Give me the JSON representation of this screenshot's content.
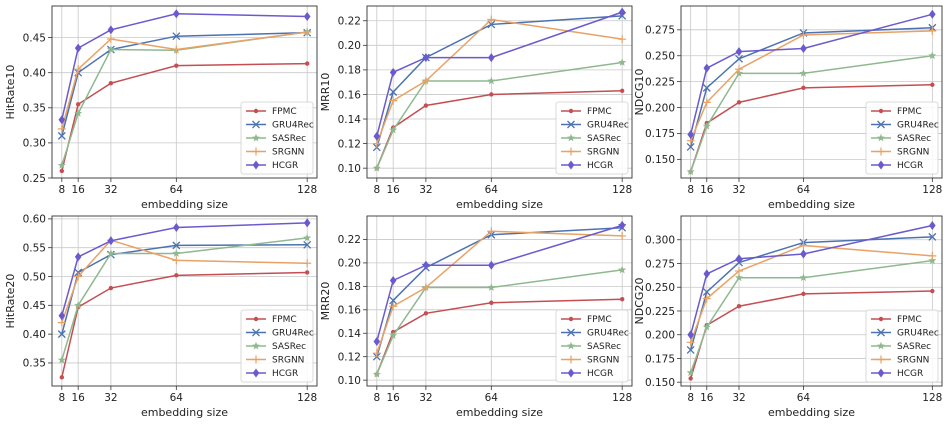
{
  "chart_data": [
    {
      "type": "line",
      "x": [
        8,
        16,
        32,
        64,
        128
      ],
      "xticks": [
        "8",
        "16",
        "32",
        "64",
        "128"
      ],
      "xlabel": "embedding size",
      "ylabel": "HitRate10",
      "ylim": [
        0.25,
        0.495
      ],
      "yticks": [
        "0.25",
        "0.30",
        "0.35",
        "0.40",
        "0.45"
      ],
      "grid": true,
      "legend_position": "lower-right",
      "series": [
        {
          "name": "FPMC",
          "values": [
            0.26,
            0.355,
            0.385,
            0.41,
            0.413
          ]
        },
        {
          "name": "GRU4Rec",
          "values": [
            0.31,
            0.4,
            0.433,
            0.452,
            0.457
          ]
        },
        {
          "name": "SASRec",
          "values": [
            0.268,
            0.342,
            0.433,
            0.432,
            0.458
          ]
        },
        {
          "name": "SRGNN",
          "values": [
            0.32,
            0.405,
            0.448,
            0.433,
            0.458
          ]
        },
        {
          "name": "HCGR",
          "values": [
            0.333,
            0.435,
            0.461,
            0.484,
            0.48
          ]
        }
      ]
    },
    {
      "type": "line",
      "x": [
        8,
        16,
        32,
        64,
        128
      ],
      "xticks": [
        "8",
        "16",
        "32",
        "64",
        "128"
      ],
      "xlabel": "embedding size",
      "ylabel": "MRR10",
      "ylim": [
        0.092,
        0.232
      ],
      "yticks": [
        "0.10",
        "0.12",
        "0.14",
        "0.16",
        "0.18",
        "0.20",
        "0.22"
      ],
      "grid": true,
      "legend_position": "lower-right",
      "series": [
        {
          "name": "FPMC",
          "values": [
            0.1,
            0.133,
            0.151,
            0.16,
            0.163
          ]
        },
        {
          "name": "GRU4Rec",
          "values": [
            0.117,
            0.162,
            0.19,
            0.217,
            0.224
          ]
        },
        {
          "name": "SASRec",
          "values": [
            0.1,
            0.131,
            0.171,
            0.171,
            0.186
          ]
        },
        {
          "name": "SRGNN",
          "values": [
            0.12,
            0.155,
            0.171,
            0.221,
            0.205
          ]
        },
        {
          "name": "HCGR",
          "values": [
            0.126,
            0.178,
            0.19,
            0.19,
            0.227
          ]
        }
      ]
    },
    {
      "type": "line",
      "x": [
        8,
        16,
        32,
        64,
        128
      ],
      "xticks": [
        "8",
        "16",
        "32",
        "64",
        "128"
      ],
      "xlabel": "embedding size",
      "ylabel": "NDCG10",
      "ylim": [
        0.132,
        0.298
      ],
      "yticks": [
        "0.150",
        "0.175",
        "0.200",
        "0.225",
        "0.250",
        "0.275"
      ],
      "grid": true,
      "legend_position": "lower-right",
      "series": [
        {
          "name": "FPMC",
          "values": [
            0.138,
            0.185,
            0.205,
            0.219,
            0.222
          ]
        },
        {
          "name": "GRU4Rec",
          "values": [
            0.162,
            0.219,
            0.247,
            0.272,
            0.277
          ]
        },
        {
          "name": "SASRec",
          "values": [
            0.138,
            0.182,
            0.233,
            0.233,
            0.25
          ]
        },
        {
          "name": "SRGNN",
          "values": [
            0.168,
            0.205,
            0.237,
            0.27,
            0.274
          ]
        },
        {
          "name": "HCGR",
          "values": [
            0.174,
            0.238,
            0.254,
            0.257,
            0.29
          ]
        }
      ]
    },
    {
      "type": "line",
      "x": [
        8,
        16,
        32,
        64,
        128
      ],
      "xticks": [
        "8",
        "16",
        "32",
        "64",
        "128"
      ],
      "xlabel": "embedding size",
      "ylabel": "HitRate20",
      "ylim": [
        0.31,
        0.605
      ],
      "yticks": [
        "0.35",
        "0.40",
        "0.45",
        "0.50",
        "0.55",
        "0.60"
      ],
      "grid": true,
      "legend_position": "lower-right",
      "series": [
        {
          "name": "FPMC",
          "values": [
            0.325,
            0.447,
            0.48,
            0.502,
            0.507
          ]
        },
        {
          "name": "GRU4Rec",
          "values": [
            0.4,
            0.507,
            0.538,
            0.554,
            0.555
          ]
        },
        {
          "name": "SASRec",
          "values": [
            0.355,
            0.45,
            0.54,
            0.54,
            0.567
          ]
        },
        {
          "name": "SRGNN",
          "values": [
            0.42,
            0.5,
            0.563,
            0.528,
            0.523
          ]
        },
        {
          "name": "HCGR",
          "values": [
            0.432,
            0.534,
            0.562,
            0.585,
            0.593
          ]
        }
      ]
    },
    {
      "type": "line",
      "x": [
        8,
        16,
        32,
        64,
        128
      ],
      "xticks": [
        "8",
        "16",
        "32",
        "64",
        "128"
      ],
      "xlabel": "embedding size",
      "ylabel": "MRR20",
      "ylim": [
        0.095,
        0.24
      ],
      "yticks": [
        "0.10",
        "0.12",
        "0.14",
        "0.16",
        "0.18",
        "0.20",
        "0.22"
      ],
      "grid": true,
      "legend_position": "lower-right",
      "series": [
        {
          "name": "FPMC",
          "values": [
            0.105,
            0.141,
            0.157,
            0.166,
            0.169
          ]
        },
        {
          "name": "GRU4Rec",
          "values": [
            0.12,
            0.168,
            0.196,
            0.224,
            0.23
          ]
        },
        {
          "name": "SASRec",
          "values": [
            0.105,
            0.138,
            0.179,
            0.179,
            0.194
          ]
        },
        {
          "name": "SRGNN",
          "values": [
            0.123,
            0.163,
            0.179,
            0.227,
            0.223
          ]
        },
        {
          "name": "HCGR",
          "values": [
            0.133,
            0.185,
            0.198,
            0.198,
            0.232
          ]
        }
      ]
    },
    {
      "type": "line",
      "x": [
        8,
        16,
        32,
        64,
        128
      ],
      "xticks": [
        "8",
        "16",
        "32",
        "64",
        "128"
      ],
      "xlabel": "embedding size",
      "ylabel": "NDCG20",
      "ylim": [
        0.146,
        0.325
      ],
      "yticks": [
        "0.150",
        "0.175",
        "0.200",
        "0.225",
        "0.250",
        "0.275",
        "0.300"
      ],
      "grid": true,
      "legend_position": "lower-right",
      "series": [
        {
          "name": "FPMC",
          "values": [
            0.154,
            0.21,
            0.23,
            0.243,
            0.246
          ]
        },
        {
          "name": "GRU4Rec",
          "values": [
            0.184,
            0.245,
            0.276,
            0.297,
            0.303
          ]
        },
        {
          "name": "SASRec",
          "values": [
            0.16,
            0.208,
            0.26,
            0.26,
            0.278
          ]
        },
        {
          "name": "SRGNN",
          "values": [
            0.192,
            0.238,
            0.267,
            0.294,
            0.283
          ]
        },
        {
          "name": "HCGR",
          "values": [
            0.2,
            0.264,
            0.28,
            0.285,
            0.315
          ]
        }
      ]
    }
  ],
  "series_styles": [
    {
      "name": "FPMC",
      "color": "#c44e52",
      "marker": "dot"
    },
    {
      "name": "GRU4Rec",
      "color": "#4c72b0",
      "marker": "x"
    },
    {
      "name": "SASRec",
      "color": "#8fb88f",
      "marker": "star"
    },
    {
      "name": "SRGNN",
      "color": "#e8a265",
      "marker": "plus"
    },
    {
      "name": "HCGR",
      "color": "#6a5acd",
      "marker": "diamond"
    }
  ]
}
